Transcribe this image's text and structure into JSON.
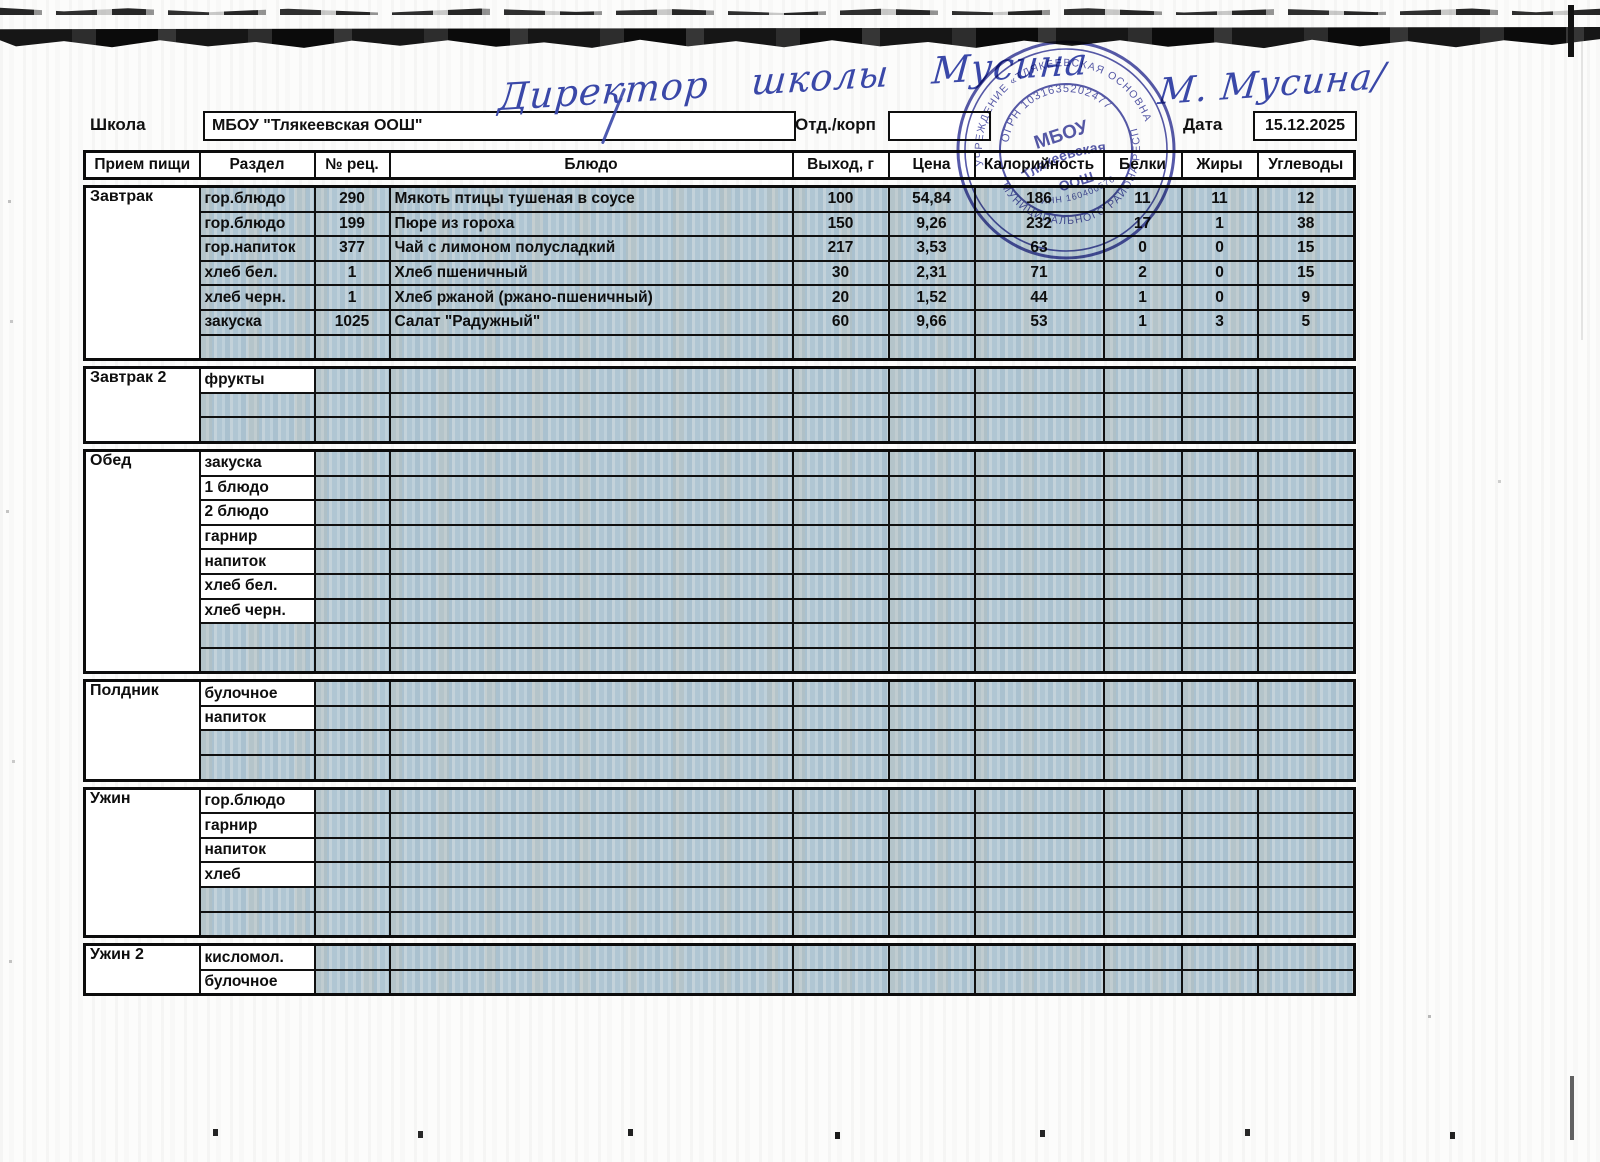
{
  "form": {
    "school_label": "Школа",
    "school_value": "МБОУ \"Тлякеевская ООШ\"",
    "dept_label": "Отд./корп",
    "dept_value": "",
    "date_label": "Дата",
    "date_value": "15.12.2025"
  },
  "handwriting": {
    "director_line": "Директор школы Мусина",
    "signature": "М. Мусина/"
  },
  "stamp": {
    "ring_top": "УЧРЕЖДЕНИЕ «ТЛЯКЕЕВСКАЯ ОСНОВНАЯ ОБЩ",
    "ring_bottom": "МУНИЦИПАЛЬНОГО РАЙОНА РЕСПУБЛ",
    "ogrn": "ОГРН 1031635202477",
    "center_line1": "МБОУ",
    "center_line2": "Тлякеевская",
    "center_line3": "ООШ",
    "inn": "ИНН 160400576",
    "color": "#3a3d9b"
  },
  "table": {
    "headers": [
      "Прием пищи",
      "Раздел",
      "№ рец.",
      "Блюдо",
      "Выход, г",
      "Цена",
      "Калорийность",
      "Белки",
      "Жиры",
      "Углеводы"
    ],
    "sections": [
      {
        "key": "zavtrak",
        "meal": "Завтрак",
        "rows": [
          {
            "razdel": "гор.блюдо",
            "razdel_white": false,
            "rec": "290",
            "dish": "Мякоть птицы тушеная в соусе",
            "out": "100",
            "price": "54,84",
            "kcal": "186",
            "prot": "11",
            "fat": "11",
            "carb": "12"
          },
          {
            "razdel": "гор.блюдо",
            "razdel_white": false,
            "rec": "199",
            "dish": "Пюре из гороха",
            "out": "150",
            "price": "9,26",
            "kcal": "232",
            "prot": "17",
            "fat": "1",
            "carb": "38"
          },
          {
            "razdel": "гор.напиток",
            "razdel_white": false,
            "rec": "377",
            "dish": "Чай с лимоном полусладкий",
            "out": "217",
            "price": "3,53",
            "kcal": "63",
            "prot": "0",
            "fat": "0",
            "carb": "15"
          },
          {
            "razdel": "хлеб бел.",
            "razdel_white": false,
            "rec": "1",
            "dish": "Хлеб пшеничный",
            "out": "30",
            "price": "2,31",
            "kcal": "71",
            "prot": "2",
            "fat": "0",
            "carb": "15"
          },
          {
            "razdel": "хлеб черн.",
            "razdel_white": false,
            "rec": "1",
            "dish": "Хлеб ржаной (ржано-пшеничный)",
            "out": "20",
            "price": "1,52",
            "kcal": "44",
            "prot": "1",
            "fat": "0",
            "carb": "9"
          },
          {
            "razdel": "закуска",
            "razdel_white": false,
            "rec": "1025",
            "dish": "Салат \"Радужный\"",
            "out": "60",
            "price": "9,66",
            "kcal": "53",
            "prot": "1",
            "fat": "3",
            "carb": "5"
          },
          {
            "razdel": "",
            "razdel_white": false,
            "rec": "",
            "dish": "",
            "out": "",
            "price": "",
            "kcal": "",
            "prot": "",
            "fat": "",
            "carb": ""
          }
        ]
      },
      {
        "key": "zavtrak-2",
        "meal": "Завтрак 2",
        "rows": [
          {
            "razdel": "фрукты",
            "razdel_white": true,
            "rec": "",
            "dish": "",
            "out": "",
            "price": "",
            "kcal": "",
            "prot": "",
            "fat": "",
            "carb": ""
          },
          {
            "razdel": "",
            "razdel_white": false,
            "rec": "",
            "dish": "",
            "out": "",
            "price": "",
            "kcal": "",
            "prot": "",
            "fat": "",
            "carb": ""
          },
          {
            "razdel": "",
            "razdel_white": false,
            "rec": "",
            "dish": "",
            "out": "",
            "price": "",
            "kcal": "",
            "prot": "",
            "fat": "",
            "carb": ""
          }
        ]
      },
      {
        "key": "obed",
        "meal": "Обед",
        "rows": [
          {
            "razdel": "закуска",
            "razdel_white": true,
            "rec": "",
            "dish": "",
            "out": "",
            "price": "",
            "kcal": "",
            "prot": "",
            "fat": "",
            "carb": ""
          },
          {
            "razdel": "1 блюдо",
            "razdel_white": true,
            "rec": "",
            "dish": "",
            "out": "",
            "price": "",
            "kcal": "",
            "prot": "",
            "fat": "",
            "carb": ""
          },
          {
            "razdel": "2 блюдо",
            "razdel_white": true,
            "rec": "",
            "dish": "",
            "out": "",
            "price": "",
            "kcal": "",
            "prot": "",
            "fat": "",
            "carb": ""
          },
          {
            "razdel": "гарнир",
            "razdel_white": true,
            "rec": "",
            "dish": "",
            "out": "",
            "price": "",
            "kcal": "",
            "prot": "",
            "fat": "",
            "carb": ""
          },
          {
            "razdel": "напиток",
            "razdel_white": true,
            "rec": "",
            "dish": "",
            "out": "",
            "price": "",
            "kcal": "",
            "prot": "",
            "fat": "",
            "carb": ""
          },
          {
            "razdel": "хлеб бел.",
            "razdel_white": true,
            "rec": "",
            "dish": "",
            "out": "",
            "price": "",
            "kcal": "",
            "prot": "",
            "fat": "",
            "carb": ""
          },
          {
            "razdel": "хлеб черн.",
            "razdel_white": true,
            "rec": "",
            "dish": "",
            "out": "",
            "price": "",
            "kcal": "",
            "prot": "",
            "fat": "",
            "carb": ""
          },
          {
            "razdel": "",
            "razdel_white": false,
            "rec": "",
            "dish": "",
            "out": "",
            "price": "",
            "kcal": "",
            "prot": "",
            "fat": "",
            "carb": ""
          },
          {
            "razdel": "",
            "razdel_white": false,
            "rec": "",
            "dish": "",
            "out": "",
            "price": "",
            "kcal": "",
            "prot": "",
            "fat": "",
            "carb": ""
          }
        ]
      },
      {
        "key": "poldnik",
        "meal": "Полдник",
        "rows": [
          {
            "razdel": "булочное",
            "razdel_white": true,
            "rec": "",
            "dish": "",
            "out": "",
            "price": "",
            "kcal": "",
            "prot": "",
            "fat": "",
            "carb": ""
          },
          {
            "razdel": "напиток",
            "razdel_white": true,
            "rec": "",
            "dish": "",
            "out": "",
            "price": "",
            "kcal": "",
            "prot": "",
            "fat": "",
            "carb": ""
          },
          {
            "razdel": "",
            "razdel_white": false,
            "rec": "",
            "dish": "",
            "out": "",
            "price": "",
            "kcal": "",
            "prot": "",
            "fat": "",
            "carb": ""
          },
          {
            "razdel": "",
            "razdel_white": false,
            "rec": "",
            "dish": "",
            "out": "",
            "price": "",
            "kcal": "",
            "prot": "",
            "fat": "",
            "carb": ""
          }
        ]
      },
      {
        "key": "uzhin",
        "meal": "Ужин",
        "rows": [
          {
            "razdel": "гор.блюдо",
            "razdel_white": true,
            "rec": "",
            "dish": "",
            "out": "",
            "price": "",
            "kcal": "",
            "prot": "",
            "fat": "",
            "carb": ""
          },
          {
            "razdel": "гарнир",
            "razdel_white": true,
            "rec": "",
            "dish": "",
            "out": "",
            "price": "",
            "kcal": "",
            "prot": "",
            "fat": "",
            "carb": ""
          },
          {
            "razdel": "напиток",
            "razdel_white": true,
            "rec": "",
            "dish": "",
            "out": "",
            "price": "",
            "kcal": "",
            "prot": "",
            "fat": "",
            "carb": ""
          },
          {
            "razdel": "хлеб",
            "razdel_white": true,
            "rec": "",
            "dish": "",
            "out": "",
            "price": "",
            "kcal": "",
            "prot": "",
            "fat": "",
            "carb": ""
          },
          {
            "razdel": "",
            "razdel_white": false,
            "rec": "",
            "dish": "",
            "out": "",
            "price": "",
            "kcal": "",
            "prot": "",
            "fat": "",
            "carb": ""
          },
          {
            "razdel": "",
            "razdel_white": false,
            "rec": "",
            "dish": "",
            "out": "",
            "price": "",
            "kcal": "",
            "prot": "",
            "fat": "",
            "carb": ""
          }
        ]
      },
      {
        "key": "uzhin-2",
        "meal": "Ужин 2",
        "rows": [
          {
            "razdel": "кисломол.",
            "razdel_white": true,
            "rec": "",
            "dish": "",
            "out": "",
            "price": "",
            "kcal": "",
            "prot": "",
            "fat": "",
            "carb": ""
          },
          {
            "razdel": "булочное",
            "razdel_white": true,
            "rec": "",
            "dish": "",
            "out": "",
            "price": "",
            "kcal": "",
            "prot": "",
            "fat": "",
            "carb": ""
          }
        ]
      }
    ]
  }
}
